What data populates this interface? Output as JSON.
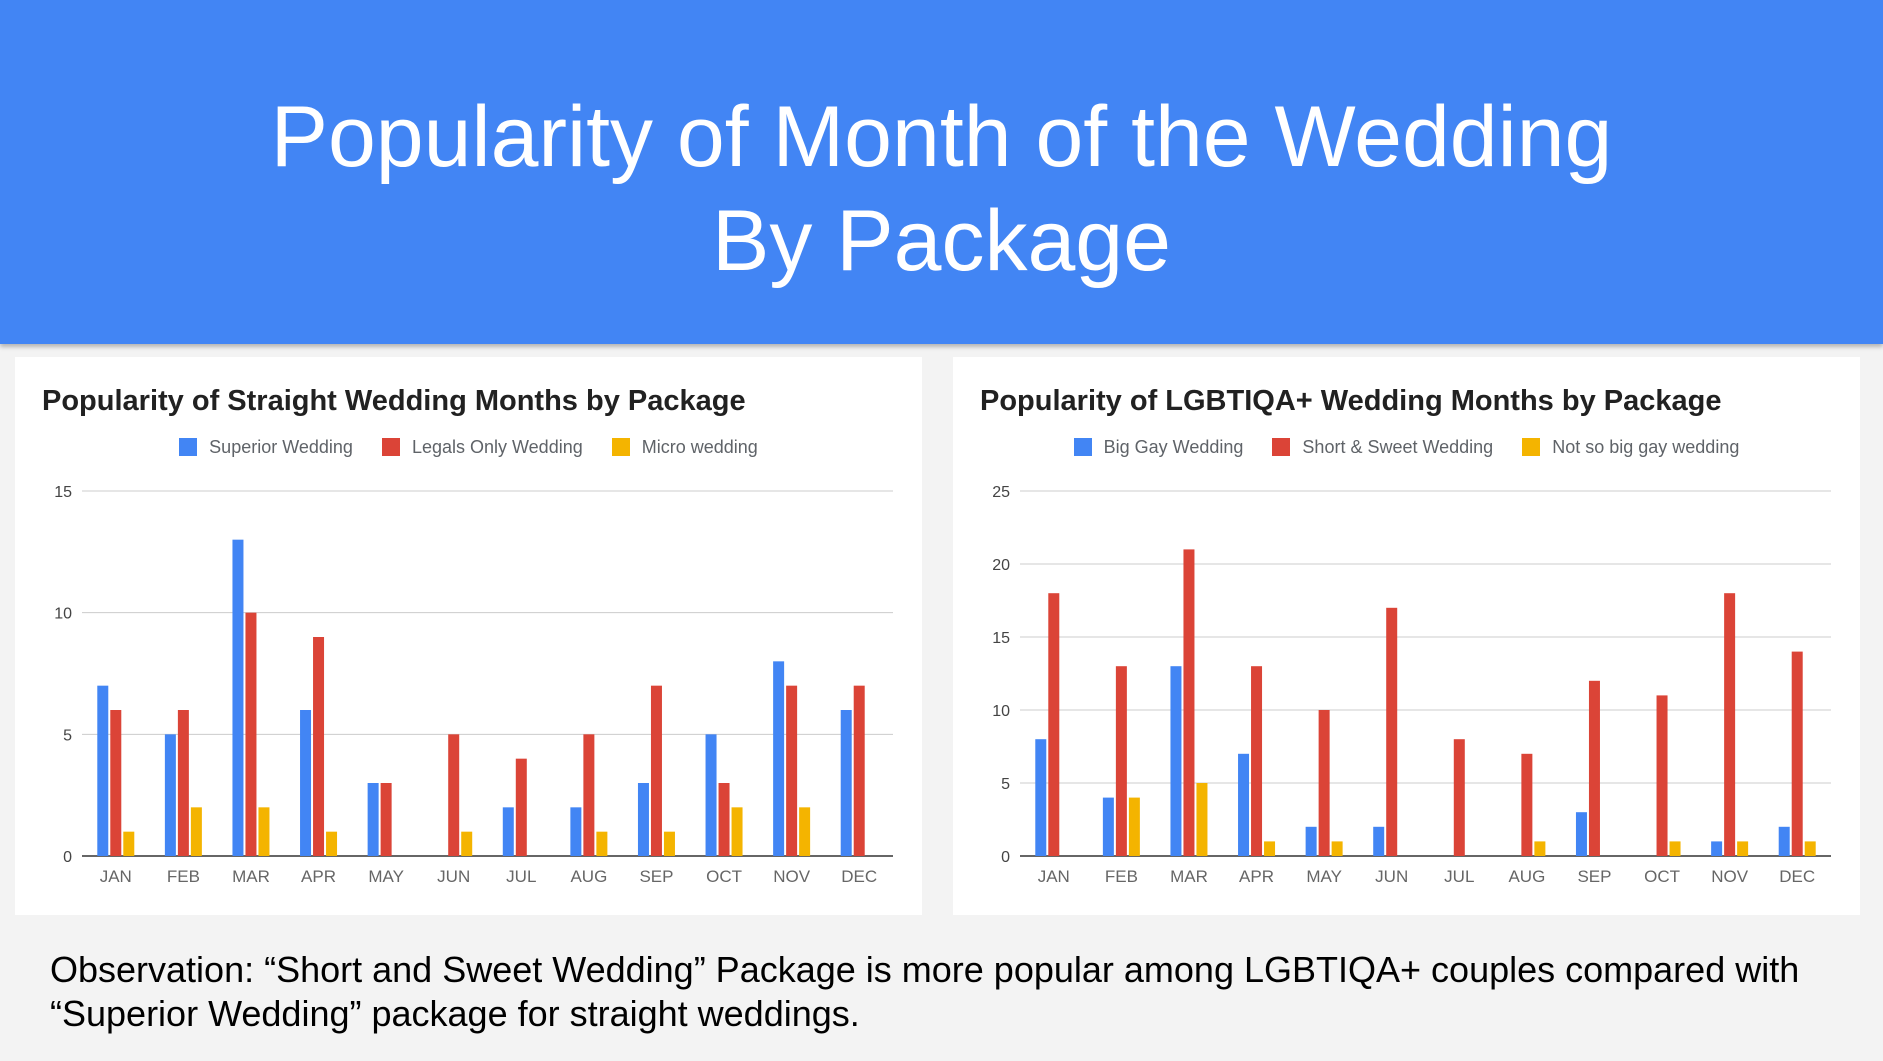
{
  "slide": {
    "title_line1": "Popularity of Month of the Wedding",
    "title_line2": "By Package",
    "observation_line1": "Observation: “Short and Sweet Wedding” Package is more popular among LGBTIQA+ couples compared with",
    "observation_line2": "“Superior Wedding” package for straight weddings.",
    "header_color": "#4285f4"
  },
  "chart_data": [
    {
      "type": "bar",
      "title": "Popularity of Straight Wedding Months by Package",
      "xlabel": "",
      "ylabel": "",
      "categories": [
        "JAN",
        "FEB",
        "MAR",
        "APR",
        "MAY",
        "JUN",
        "JUL",
        "AUG",
        "SEP",
        "OCT",
        "NOV",
        "DEC"
      ],
      "ylim": [
        0,
        15
      ],
      "yticks": [
        0,
        5,
        10,
        15
      ],
      "grid": true,
      "legend_position": "top",
      "series": [
        {
          "name": "Superior Wedding",
          "color": "#4285f4",
          "values": [
            7,
            5,
            13,
            6,
            3,
            0,
            2,
            2,
            3,
            5,
            8,
            6
          ]
        },
        {
          "name": "Legals Only Wedding",
          "color": "#db4437",
          "values": [
            6,
            6,
            10,
            9,
            3,
            5,
            4,
            5,
            7,
            3,
            7,
            7
          ]
        },
        {
          "name": "Micro wedding",
          "color": "#f4b400",
          "values": [
            1,
            2,
            2,
            1,
            0,
            1,
            0,
            1,
            1,
            2,
            2,
            0
          ]
        }
      ]
    },
    {
      "type": "bar",
      "title": "Popularity of LGBTIQA+ Wedding Months by Package",
      "xlabel": "",
      "ylabel": "",
      "categories": [
        "JAN",
        "FEB",
        "MAR",
        "APR",
        "MAY",
        "JUN",
        "JUL",
        "AUG",
        "SEP",
        "OCT",
        "NOV",
        "DEC"
      ],
      "ylim": [
        0,
        25
      ],
      "yticks": [
        0,
        5,
        10,
        15,
        20,
        25
      ],
      "grid": true,
      "legend_position": "top",
      "series": [
        {
          "name": "Big Gay Wedding",
          "color": "#4285f4",
          "values": [
            8,
            4,
            13,
            7,
            2,
            2,
            0,
            0,
            3,
            0,
            1,
            2
          ]
        },
        {
          "name": "Short & Sweet Wedding",
          "color": "#db4437",
          "values": [
            18,
            13,
            21,
            13,
            10,
            17,
            8,
            7,
            12,
            11,
            18,
            14
          ]
        },
        {
          "name": "Not so big gay wedding",
          "color": "#f4b400",
          "values": [
            0,
            4,
            5,
            1,
            1,
            0,
            0,
            1,
            0,
            1,
            1,
            1
          ]
        }
      ]
    }
  ]
}
